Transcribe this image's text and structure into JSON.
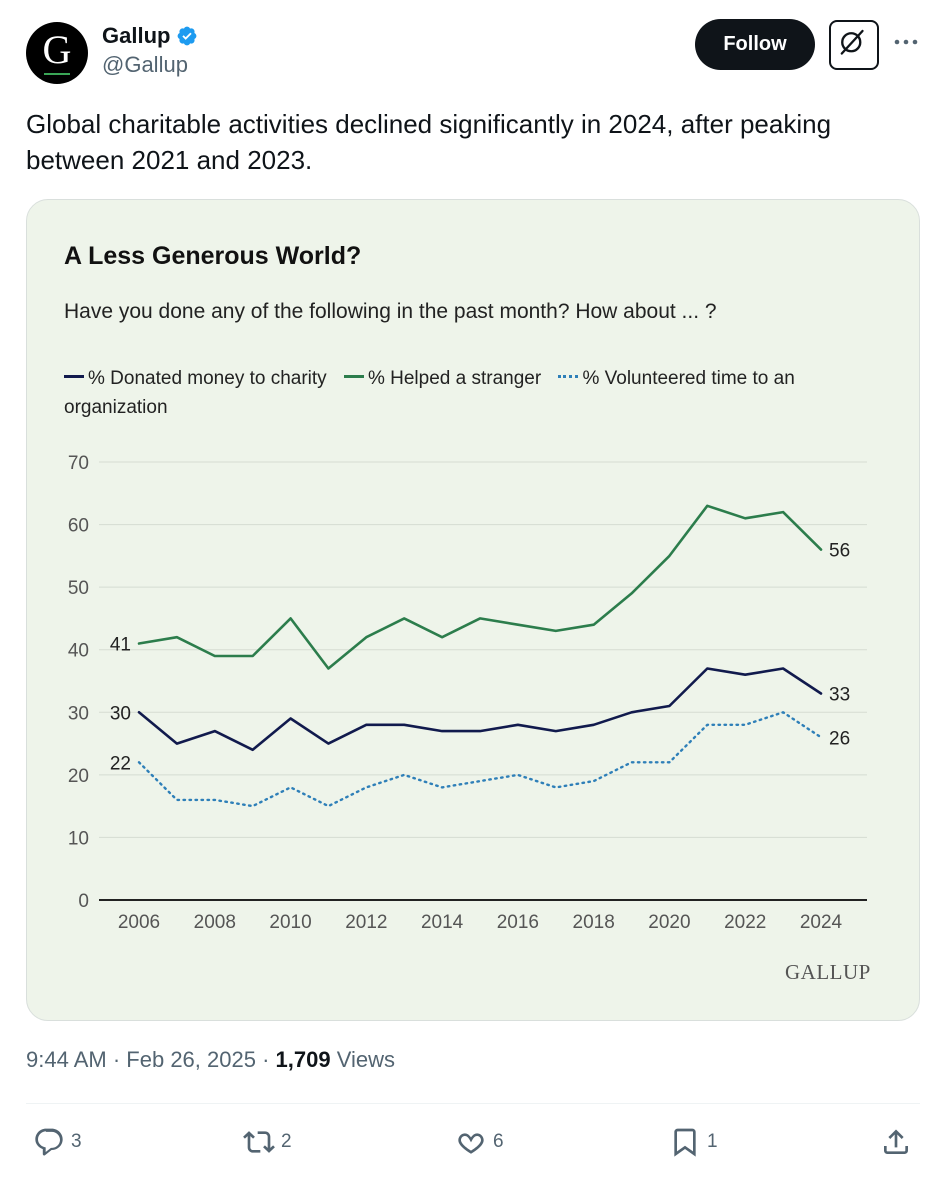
{
  "author": {
    "display_name": "Gallup",
    "handle": "@Gallup",
    "avatar_letter": "G",
    "verified": true
  },
  "actions_top": {
    "follow_label": "Follow"
  },
  "tweet": {
    "text": "Global charitable activities declined significantly in 2024, after peaking between 2021 and 2023."
  },
  "chart_data": {
    "type": "line",
    "title": "A Less Generous World?",
    "subtitle": "Have you done any of the following in the past month? How about ... ?",
    "xlabel": "",
    "ylabel": "",
    "ylim": [
      0,
      70
    ],
    "yticks": [
      "0",
      "10",
      "20",
      "30",
      "40",
      "50",
      "60",
      "70"
    ],
    "xticks": [
      "2006",
      "2008",
      "2010",
      "2012",
      "2014",
      "2016",
      "2018",
      "2020",
      "2022",
      "2024"
    ],
    "x": [
      2006,
      2007,
      2008,
      2009,
      2010,
      2011,
      2012,
      2013,
      2014,
      2015,
      2016,
      2017,
      2018,
      2019,
      2020,
      2021,
      2022,
      2023,
      2024
    ],
    "grid": true,
    "legend_position": "top",
    "series": [
      {
        "name": "% Donated money to charity",
        "color": "#111a4d",
        "style": "solid",
        "values": [
          30,
          25,
          27,
          24,
          29,
          25,
          28,
          28,
          27,
          27,
          28,
          27,
          28,
          30,
          31,
          37,
          36,
          37,
          33
        ],
        "start_label": "30",
        "end_label": "33"
      },
      {
        "name": "% Helped a stranger",
        "color": "#2c7d4c",
        "style": "solid",
        "values": [
          41,
          42,
          39,
          39,
          45,
          37,
          42,
          45,
          42,
          45,
          44,
          43,
          44,
          49,
          55,
          63,
          61,
          62,
          56
        ],
        "start_label": "41",
        "end_label": "56"
      },
      {
        "name": "% Volunteered time to an organization",
        "color": "#2e7fb8",
        "style": "dotted",
        "values": [
          22,
          16,
          16,
          15,
          18,
          15,
          18,
          20,
          18,
          19,
          20,
          18,
          19,
          22,
          22,
          28,
          28,
          30,
          26
        ],
        "start_label": "22",
        "end_label": "26"
      }
    ],
    "source_watermark": "GALLUP"
  },
  "meta": {
    "time": "9:44 AM",
    "separator": "·",
    "date": "Feb 26, 2025",
    "views_count": "1,709",
    "views_label": "Views"
  },
  "engagement": {
    "replies": "3",
    "reposts": "2",
    "likes": "6",
    "bookmarks": "1"
  },
  "colors": {
    "follow_bg": "#0f1419",
    "verified": "#1d9bf0",
    "card_bg": "#eef4ea",
    "muted_text": "#536471"
  }
}
